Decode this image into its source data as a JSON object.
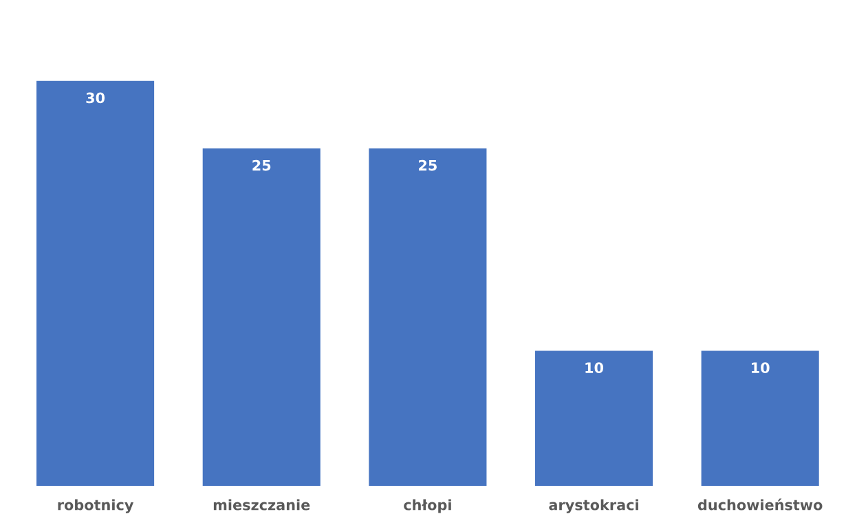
{
  "chart_data": {
    "type": "bar",
    "categories": [
      "robotnicy",
      "mieszczanie",
      "chłopi",
      "arystokraci",
      "duchowieństwo"
    ],
    "values": [
      30,
      25,
      25,
      10,
      10
    ],
    "color": "#4674c1",
    "data_labels": true,
    "grid": false,
    "legend": false
  }
}
